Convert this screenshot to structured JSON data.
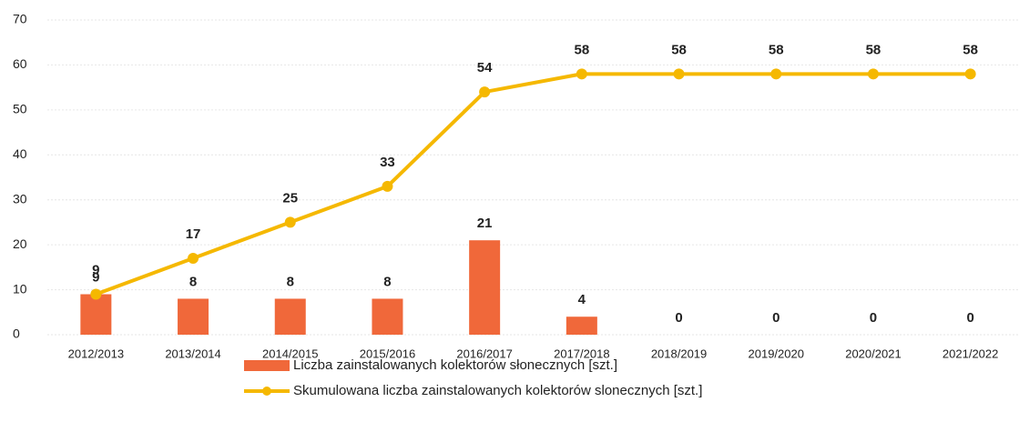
{
  "chart_data": {
    "type": "bar",
    "categories": [
      "2012/2013",
      "2013/2014",
      "2014/2015",
      "2015/2016",
      "2016/2017",
      "2017/2018",
      "2018/2019",
      "2019/2020",
      "2020/2021",
      "2021/2022"
    ],
    "series": [
      {
        "name": "Liczba zainstalowanych kolektorów słonecznych [szt.]",
        "color": "#f0683a",
        "type": "bar",
        "values": [
          9,
          8,
          8,
          8,
          21,
          4,
          0,
          0,
          0,
          0
        ]
      },
      {
        "name": "Skumulowana liczba zainstalowanych kolektorów slonecznych [szt.]",
        "color": "#f5b800",
        "type": "line",
        "values": [
          9,
          17,
          25,
          33,
          54,
          58,
          58,
          58,
          58,
          58
        ]
      }
    ],
    "ylim": [
      0,
      70
    ],
    "yticks": [
      0,
      10,
      20,
      30,
      40,
      50,
      60,
      70
    ],
    "grid": true,
    "legend": "bottom"
  }
}
